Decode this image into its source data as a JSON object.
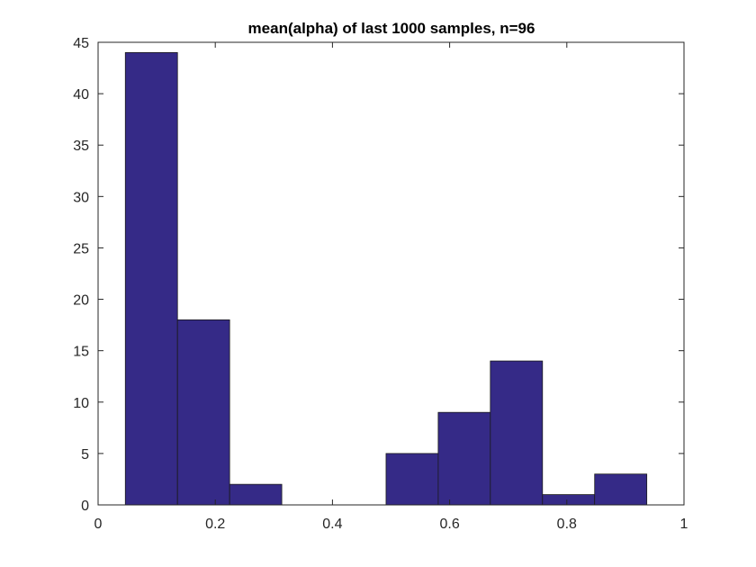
{
  "chart_data": {
    "type": "bar",
    "title": "mean(alpha) of last 1000 samples, n=96",
    "xlabel": "",
    "ylabel": "",
    "xlim": [
      0,
      1
    ],
    "ylim": [
      0,
      45
    ],
    "grid": false,
    "xticks": [
      0,
      0.2,
      0.4,
      0.6,
      0.8,
      1
    ],
    "xtick_labels": [
      "0",
      "0.2",
      "0.4",
      "0.6",
      "0.8",
      "1"
    ],
    "yticks": [
      0,
      5,
      10,
      15,
      20,
      25,
      30,
      35,
      40,
      45
    ],
    "ytick_labels": [
      "0",
      "5",
      "10",
      "15",
      "20",
      "25",
      "30",
      "35",
      "40",
      "45"
    ],
    "bin_edges": [
      0.0465,
      0.1355,
      0.2245,
      0.3135,
      0.4025,
      0.4915,
      0.5805,
      0.6695,
      0.7585,
      0.8475,
      0.9365
    ],
    "values": [
      44,
      18,
      2,
      0,
      0,
      5,
      9,
      14,
      1,
      3
    ],
    "bar_color": "#352A87",
    "edge_color": "#1a1a1a"
  }
}
